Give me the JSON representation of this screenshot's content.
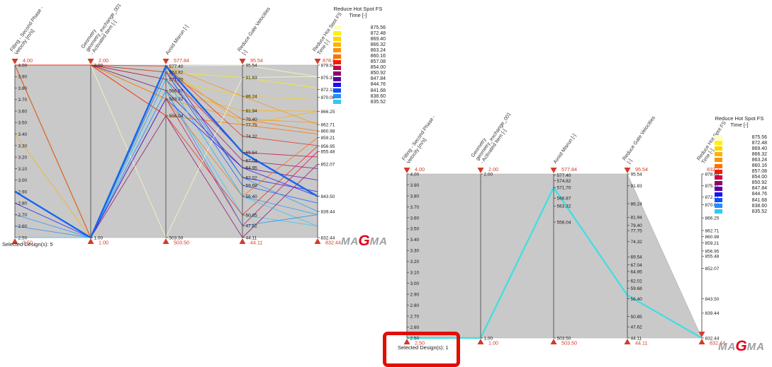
{
  "colors": {
    "accent_red": "#d23b28",
    "band_gray": "#c9c9c9",
    "band_stroke": "#aeaeae",
    "axis_line": "#5a5a5a",
    "tick_text": "#1a1a1a",
    "title_text": "#3a3a3a",
    "highlight_blue": "#1565f0",
    "highlight_cyan": "#3edee2"
  },
  "legend": {
    "title_line1": "Reduce Hot Spot FS",
    "title_line2": "Time [-]",
    "entries": [
      {
        "value": 875.56,
        "label": "875.56",
        "color": "#ffffbe"
      },
      {
        "value": 872.48,
        "label": "872.48",
        "color": "#fef200"
      },
      {
        "value": 869.4,
        "label": "869.40",
        "color": "#ffd300"
      },
      {
        "value": 866.32,
        "label": "866.32",
        "color": "#ffb100"
      },
      {
        "value": 863.24,
        "label": "863.24",
        "color": "#ff9200"
      },
      {
        "value": 860.16,
        "label": "860.16",
        "color": "#ff7000"
      },
      {
        "value": 857.08,
        "label": "857.08",
        "color": "#f21b0a"
      },
      {
        "value": 854.0,
        "label": "854.00",
        "color": "#ce0048"
      },
      {
        "value": 850.92,
        "label": "850.92",
        "color": "#8e0070"
      },
      {
        "value": 847.84,
        "label": "847.84",
        "color": "#5b00a8"
      },
      {
        "value": 844.76,
        "label": "844.76",
        "color": "#1a12f0"
      },
      {
        "value": 841.68,
        "label": "841.68",
        "color": "#0a52ff"
      },
      {
        "value": 838.6,
        "label": "838.60",
        "color": "#1e90ff"
      },
      {
        "value": 835.52,
        "label": "835.52",
        "color": "#30c8f5"
      }
    ]
  },
  "logo": {
    "pre": "MA",
    "accent": "G",
    "post": "MA"
  },
  "chart_data": {
    "type": "parallel-coordinates",
    "panels": [
      {
        "name": "left",
        "selected_label": "Selected Design(s): 5",
        "axes": [
          {
            "title": [
              "Filling - Second Phase -",
              "Velocity [m/s]"
            ],
            "min": 2.5,
            "max": 4.0,
            "upper_label": "4.00",
            "lower_label": "2.50",
            "ticks": [
              "4.00",
              "3.90",
              "3.80",
              "3.70",
              "3.60",
              "3.50",
              "3.40",
              "3.30",
              "3.20",
              "3.10",
              "3.00",
              "2.90",
              "2.80",
              "2.70",
              "2.60",
              "2.50"
            ]
          },
          {
            "title": [
              "Geometry",
              "geometry_exchange_001",
              "- Activated Item [-]"
            ],
            "min": 1.0,
            "max": 2.0,
            "upper_label": "2.00",
            "lower_label": "1.00",
            "ticks": [
              "2.00",
              "1.00"
            ]
          },
          {
            "title": [
              "Avoid Misrun [-]"
            ],
            "min": 503.5,
            "max": 577.84,
            "upper_label": "577.84",
            "lower_label": "503.50",
            "ticks": [
              "577.40",
              "574.82",
              "571.70",
              "566.87",
              "563.32",
              "556.04",
              "503.50"
            ]
          },
          {
            "title": [
              "Reduce Gate Velocities",
              "[-]"
            ],
            "min": 44.11,
            "max": 95.54,
            "upper_label": "95.54",
            "lower_label": "44.11",
            "ticks": [
              "95.54",
              "91.83",
              "86.24",
              "81.94",
              "79.40",
              "77.75",
              "74.32",
              "69.54",
              "67.04",
              "64.95",
              "62.02",
              "59.68",
              "56.40",
              "50.85",
              "47.62",
              "44.11"
            ]
          },
          {
            "title": [
              "Reduce Hot Spot FS",
              "Time [-]"
            ],
            "min": 832.44,
            "max": 878.64,
            "upper_label": "878.6",
            "lower_label": "832.44",
            "ticks": [
              "878.64",
              "875.31",
              "872.11",
              "870.00",
              "866.25",
              "862.71",
              "860.98",
              "859.21",
              "856.95",
              "855.48",
              "852.07",
              "843.50",
              "839.44",
              "832.44"
            ]
          }
        ],
        "band": [
          [
            0,
            4.0,
            2.5
          ],
          [
            4,
            878.64,
            832.44
          ]
        ],
        "designs": [
          {
            "values": [
              4.0,
              2.0,
              577.4,
              95.54,
              875.56
            ]
          },
          {
            "values": [
              4.0,
              2.0,
              574.82,
              91.83,
              872.48
            ]
          },
          {
            "values": [
              4.0,
              2.0,
              571.7,
              86.24,
              869.4
            ]
          },
          {
            "values": [
              4.0,
              2.0,
              566.87,
              81.94,
              866.32
            ]
          },
          {
            "values": [
              4.0,
              2.0,
              563.32,
              79.4,
              863.24
            ]
          },
          {
            "values": [
              4.0,
              2.0,
              556.04,
              77.75,
              860.16
            ]
          },
          {
            "values": [
              4.0,
              2.0,
              577.4,
              74.32,
              857.08
            ]
          },
          {
            "values": [
              4.0,
              2.0,
              574.82,
              69.54,
              854.0
            ]
          },
          {
            "values": [
              4.0,
              2.0,
              571.7,
              67.04,
              850.92
            ]
          },
          {
            "values": [
              4.0,
              2.0,
              566.87,
              64.95,
              847.84
            ]
          },
          {
            "values": [
              4.0,
              1.0,
              577.4,
              62.02,
              844.76
            ]
          },
          {
            "values": [
              4.0,
              1.0,
              574.82,
              59.68,
              841.68
            ]
          },
          {
            "values": [
              4.0,
              1.0,
              571.7,
              56.4,
              838.6
            ]
          },
          {
            "values": [
              4.0,
              1.0,
              566.87,
              50.85,
              835.52
            ]
          },
          {
            "values": [
              4.0,
              1.0,
              563.32,
              47.62,
              855.48
            ]
          },
          {
            "values": [
              4.0,
              1.0,
              556.04,
              44.11,
              852.07
            ]
          },
          {
            "values": [
              4.0,
              1.0,
              577.4,
              86.24,
              862.71
            ]
          },
          {
            "values": [
              4.0,
              1.0,
              574.82,
              79.4,
              860.98
            ]
          },
          {
            "values": [
              4.0,
              2.0,
              503.5,
              91.83,
              875.56
            ]
          },
          {
            "values": [
              4.0,
              2.0,
              563.32,
              56.4,
              859.21
            ]
          },
          {
            "values": [
              4.0,
              2.0,
              556.04,
              50.85,
              856.95
            ]
          },
          {
            "values": [
              3.4,
              1.0,
              577.4,
              77.75,
              866.25
            ]
          },
          {
            "values": [
              2.6,
              1.0,
              574.82,
              62.02,
              839.44
            ]
          },
          {
            "values": [
              2.5,
              1.0,
              571.7,
              56.4,
              835.52
            ]
          },
          {
            "values": [
              2.7,
              1.0,
              566.87,
              47.62,
              838.6
            ]
          },
          {
            "values": [
              2.8,
              1.0,
              563.32,
              64.95,
              843.5
            ]
          },
          {
            "values": [
              2.9,
              1.0,
              577.4,
              69.54,
              843.5
            ],
            "color": "#1565f0",
            "width": 2.4,
            "highlight": true
          }
        ]
      },
      {
        "name": "right",
        "selected_label": "Selected Design(s): 1",
        "axes": [
          {
            "title": [
              "Filling - Second Phase -",
              "Velocity [m/s]"
            ],
            "min": 2.5,
            "max": 4.0,
            "upper_label": "4.00",
            "lower_label": "2.50",
            "ticks": [
              "4.00",
              "3.90",
              "3.80",
              "3.70",
              "3.60",
              "3.50",
              "3.40",
              "3.30",
              "3.20",
              "3.10",
              "3.00",
              "2.90",
              "2.80",
              "2.70",
              "2.60",
              "2.50"
            ]
          },
          {
            "title": [
              "Geometry",
              "geometry_exchange_001",
              "- Activated Item [-]"
            ],
            "min": 1.0,
            "max": 2.0,
            "upper_label": "2.00",
            "lower_label": "1.00",
            "ticks": [
              "2.00",
              "1.00"
            ]
          },
          {
            "title": [
              "Avoid Misrun [-]"
            ],
            "min": 503.5,
            "max": 577.84,
            "upper_label": "577.84",
            "lower_label": "503.50",
            "ticks": [
              "577.40",
              "574.82",
              "571.70",
              "566.87",
              "563.32",
              "556.04",
              "503.50"
            ]
          },
          {
            "title": [
              "Reduce Gate Velocities",
              "[-]"
            ],
            "min": 44.11,
            "max": 95.54,
            "upper_label": "95.54",
            "lower_label": "44.11",
            "ticks": [
              "95.54",
              "91.83",
              "86.24",
              "81.94",
              "79.40",
              "77.75",
              "74.32",
              "69.54",
              "67.04",
              "64.95",
              "62.02",
              "59.68",
              "56.40",
              "50.85",
              "47.62",
              "44.11"
            ]
          },
          {
            "title": [
              "Reduce Hot Spot FS",
              "Time [-]"
            ],
            "min": 832.44,
            "max": 878.64,
            "upper_label": "832.7",
            "lower_label": "832.44",
            "upper_handle": "bottom",
            "ticks": [
              "878.64",
              "875.31",
              "872.11",
              "870.00",
              "866.25",
              "862.71",
              "860.98",
              "859.21",
              "856.95",
              "855.48",
              "852.07",
              "843.50",
              "839.44",
              "832.44"
            ]
          }
        ],
        "band": [
          [
            0,
            4.0,
            2.5
          ],
          [
            3,
            95.54,
            44.11
          ],
          [
            4,
            832.44,
            832.44
          ]
        ],
        "designs": [
          {
            "values": [
              2.5,
              1.0,
              571.7,
              57.5,
              832.44
            ],
            "color": "#3edee2",
            "width": 2.2,
            "highlight": true
          }
        ]
      }
    ]
  }
}
